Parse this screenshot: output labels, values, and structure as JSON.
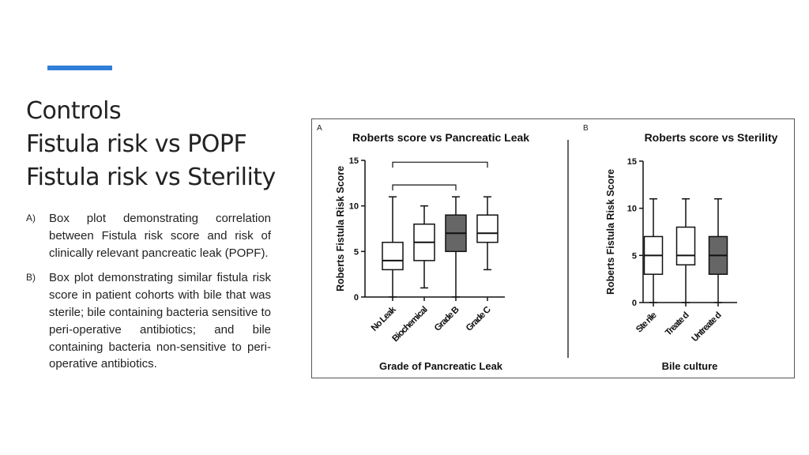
{
  "slide": {
    "title_lines": [
      "Controls",
      "Fistula risk vs POPF",
      "Fistula risk vs Sterility"
    ],
    "bullets": [
      {
        "marker": "A)",
        "text": "Box plot demonstrating correlation between Fistula risk score and risk of clinically relevant pancreatic leak (POPF)."
      },
      {
        "marker": "B)",
        "text": "Box plot demonstrating similar fistula risk score in patient cohorts with bile that was sterile; bile containing bacteria sensitive to peri-operative antibiotics; and bile containing bacteria non-sensitive to peri-operative antibiotics."
      }
    ],
    "accent_color": "#2f7ed8"
  },
  "chart_data": [
    {
      "panel_label": "A",
      "type": "box",
      "title": "Roberts score vs Pancreatic Leak",
      "xlabel": "Grade of Pancreatic Leak",
      "ylabel": "Roberts Fistula Risk Score",
      "ylim": [
        0,
        15
      ],
      "yticks": [
        0,
        5,
        10,
        15
      ],
      "categories": [
        "No Leak",
        "Biochemical",
        "Grade B",
        "Grade C"
      ],
      "boxes": [
        {
          "min": 0,
          "q1": 3,
          "median": 4,
          "q3": 6,
          "max": 11,
          "fill": "#ffffff"
        },
        {
          "min": 1,
          "q1": 4,
          "median": 6,
          "q3": 8,
          "max": 10,
          "fill": "#ffffff"
        },
        {
          "min": 0,
          "q1": 5,
          "median": 7,
          "q3": 9,
          "max": 11,
          "fill": "#666666"
        },
        {
          "min": 3,
          "q1": 6,
          "median": 7,
          "q3": 9,
          "max": 11,
          "fill": "#ffffff"
        }
      ],
      "brackets": [
        {
          "from": 0,
          "to": 3,
          "level": 14.8
        },
        {
          "from": 0,
          "to": 2,
          "level": 12.3
        }
      ]
    },
    {
      "panel_label": "B",
      "type": "box",
      "title": "Roberts score vs Sterility",
      "xlabel": "Bile culture",
      "ylabel": "Roberts Fistula Risk Score",
      "ylim": [
        0,
        15
      ],
      "yticks": [
        0,
        5,
        10,
        15
      ],
      "categories": [
        "Ste rile",
        "Treate d",
        "Untreate d"
      ],
      "boxes": [
        {
          "min": 0,
          "q1": 3,
          "median": 5,
          "q3": 7,
          "max": 11,
          "fill": "#ffffff"
        },
        {
          "min": 0,
          "q1": 4,
          "median": 5,
          "q3": 8,
          "max": 11,
          "fill": "#ffffff"
        },
        {
          "min": 0,
          "q1": 3,
          "median": 5,
          "q3": 7,
          "max": 11,
          "fill": "#666666"
        }
      ]
    }
  ]
}
